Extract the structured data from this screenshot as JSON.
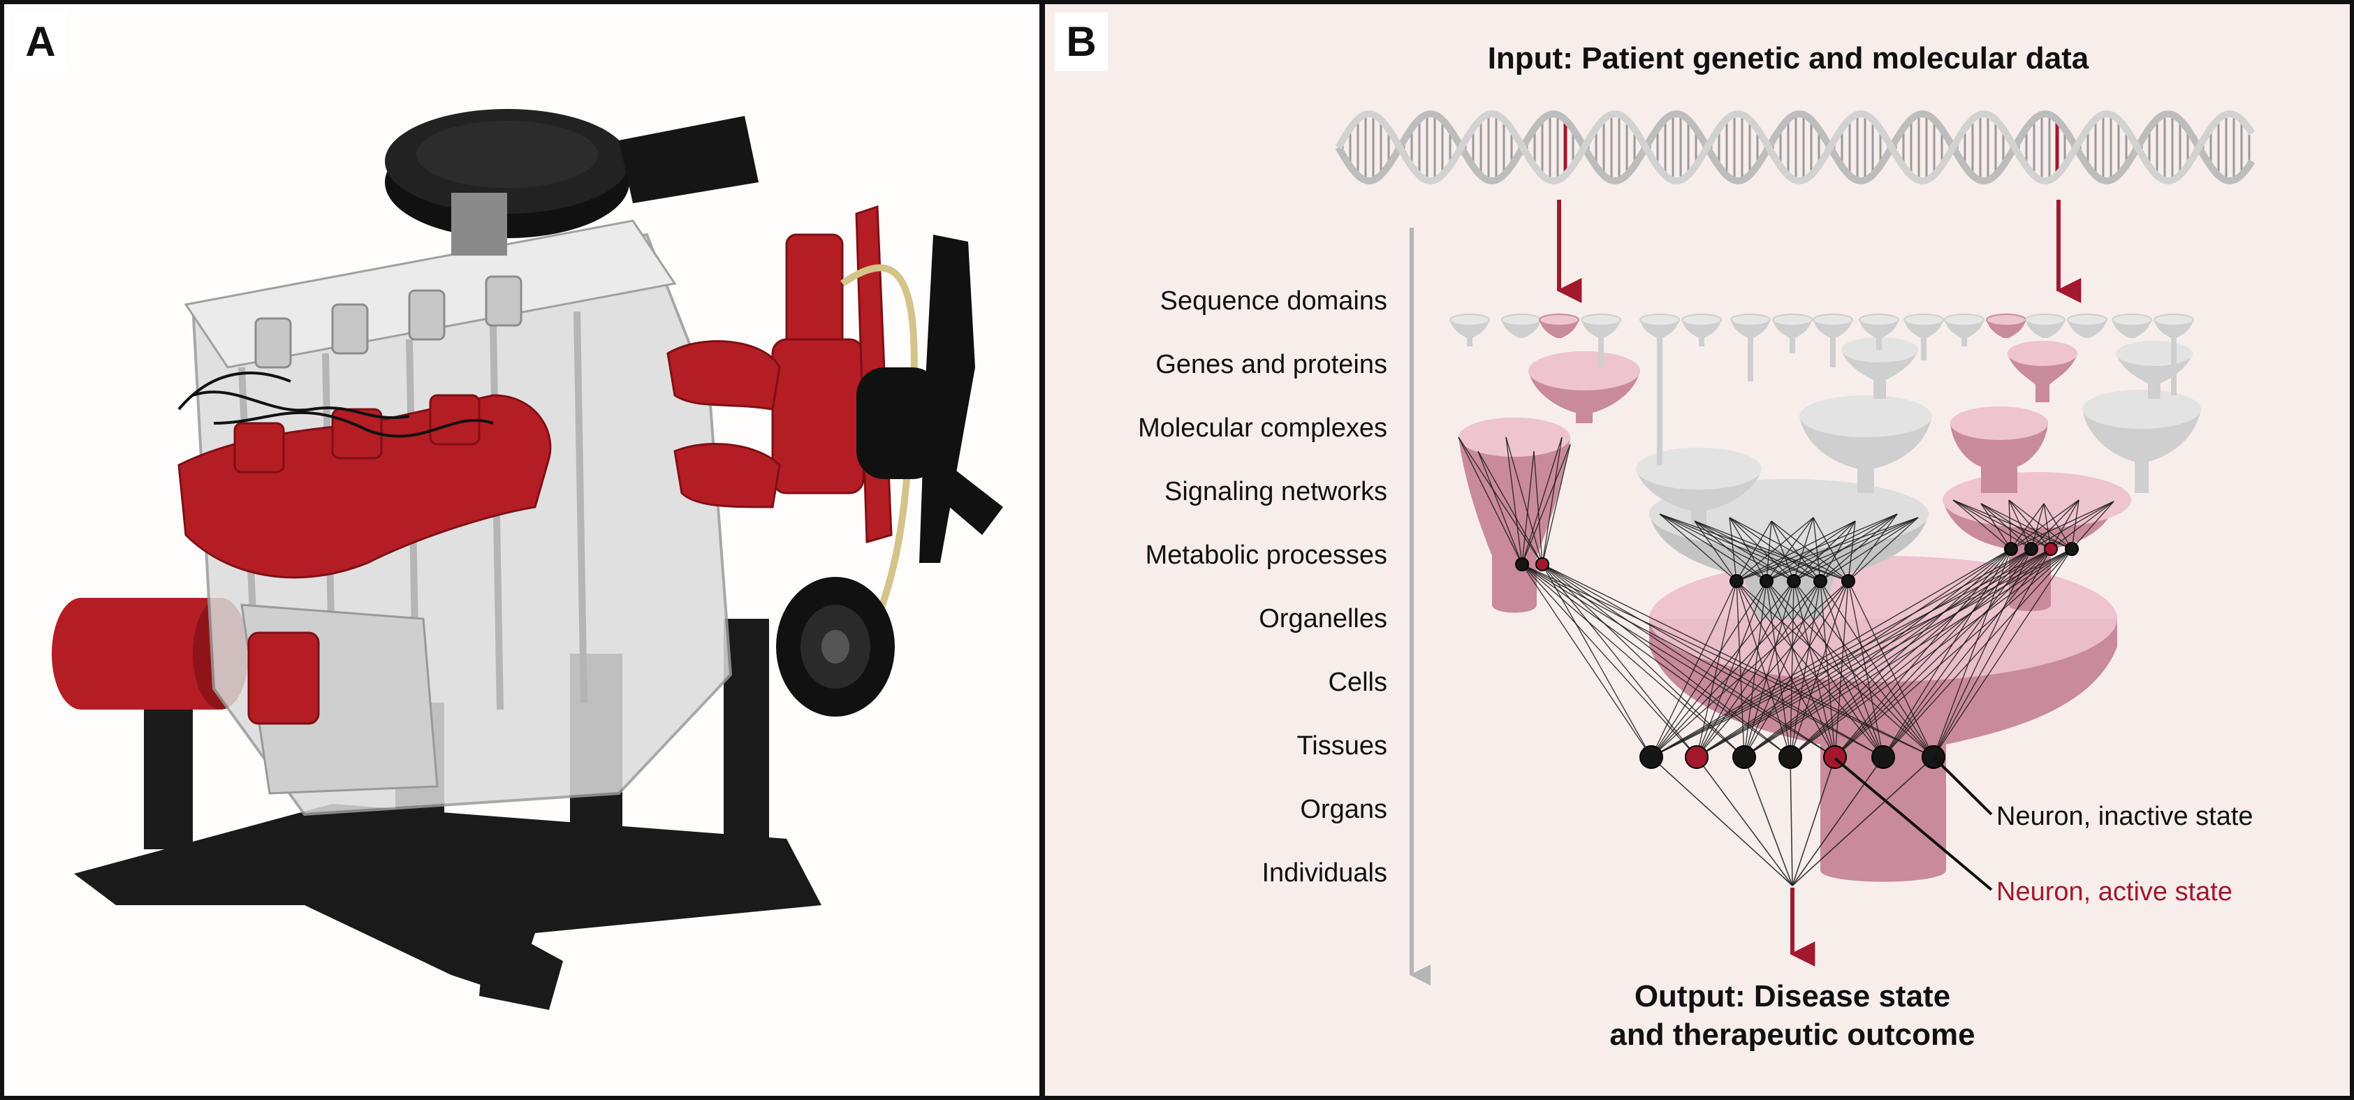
{
  "panel_a": {
    "letter": "A"
  },
  "panel_b": {
    "letter": "B",
    "input_title": "Input: Patient genetic and molecular data",
    "levels": [
      "Sequence domains",
      "Genes and proteins",
      "Molecular complexes",
      "Signaling networks",
      "Metabolic processes",
      "Organelles",
      "Cells",
      "Tissues",
      "Organs",
      "Individuals"
    ],
    "legend_inactive": "Neuron, inactive state",
    "legend_active": "Neuron, active state",
    "output_line1": "Output: Disease state",
    "output_line2": "and therapeutic outcome"
  },
  "colors": {
    "accent_red": "#a3182d",
    "funnel_pink": "#c98a9b",
    "funnel_pink_light": "#ecc9d2",
    "funnel_grey": "#cfcfcf",
    "neuron_black": "#161616"
  }
}
